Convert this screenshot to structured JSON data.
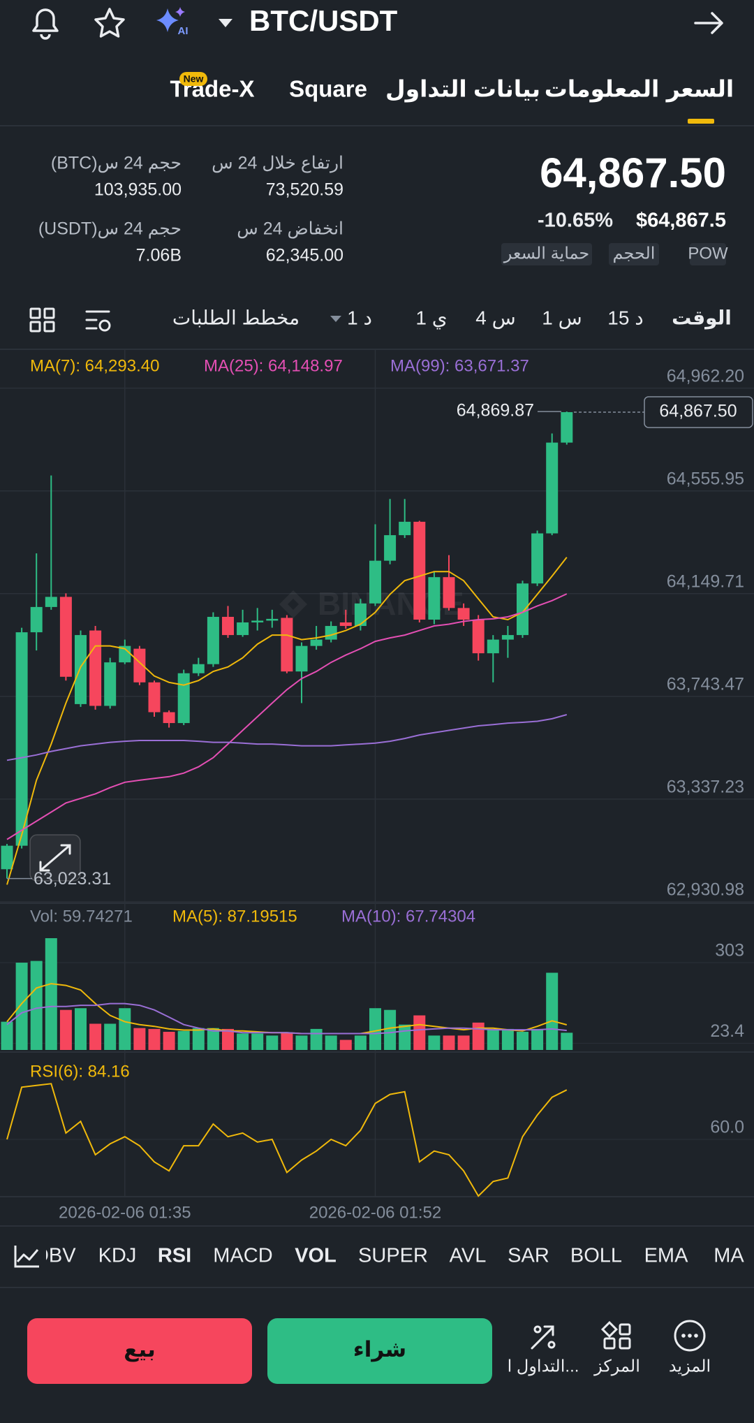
{
  "header": {
    "pair": "BTC/USDT",
    "ai_badge": "AI"
  },
  "tabs": [
    "السعر",
    "المعلومات",
    "بيانات التداول",
    "Square",
    "Trade-X"
  ],
  "new_badge": "New",
  "price": {
    "last": "64,867.50",
    "change": "-10.65%",
    "usd": "$64,867.5",
    "tags": [
      "POW",
      "الحجم",
      "حماية السعر"
    ]
  },
  "stats": [
    {
      "label": "ارتفاع خلال 24 س",
      "value": "73,520.59"
    },
    {
      "label": "حجم 24 س(BTC)",
      "value": "103,935.00"
    },
    {
      "label": "انخفاض 24 س",
      "value": "62,345.00"
    },
    {
      "label": "حجم 24 س(USDT)",
      "value": "7.06B"
    }
  ],
  "timeframes": [
    "الوقت",
    "15 د",
    "1 س",
    "4 س",
    "1 ي",
    "1 د"
  ],
  "depth_chart": "مخطط الطلبات",
  "chart_data": {
    "type": "candlestick",
    "categories": [
      null,
      null,
      null,
      null,
      null,
      null,
      null,
      null,
      "2026-02-06 01:35",
      null,
      null,
      null,
      null,
      null,
      null,
      null,
      null,
      null,
      null,
      null,
      null,
      null,
      null,
      null,
      null,
      "2026-02-06 01:52",
      null,
      null,
      null,
      null,
      null,
      null,
      null,
      null,
      null,
      null,
      null,
      null,
      null
    ],
    "open": [
      63060,
      63153,
      63997,
      64097,
      64137,
      63713,
      64004,
      63706,
      63878,
      63932,
      63799,
      63681,
      63638,
      63835,
      63871,
      64058,
      63986,
      64036,
      64043,
      64054,
      63842,
      63943,
      63968,
      64036,
      64022,
      64111,
      64280,
      64381,
      64434,
      64047,
      64215,
      64093,
      64047,
      63914,
      63968,
      63986,
      64190,
      64388,
      64747
    ],
    "high": [
      63160,
      64015,
      64309,
      64617,
      64151,
      64004,
      64022,
      63896,
      63968,
      63943,
      63806,
      63688,
      63849,
      63896,
      64076,
      64101,
      64086,
      64093,
      64086,
      64065,
      63957,
      64022,
      64040,
      64086,
      64129,
      64424,
      64524,
      64524,
      64438,
      64237,
      64302,
      64111,
      64065,
      63986,
      64022,
      64201,
      64399,
      64783,
      64869.87
    ],
    "low": [
      63023.31,
      63142,
      63925,
      64086,
      63806,
      63702,
      63691,
      63695,
      63871,
      63788,
      63663,
      63620,
      63630,
      63824,
      63860,
      63975,
      63979,
      64004,
      64015,
      63835,
      63717,
      63928,
      63957,
      64011,
      64004,
      64101,
      64266,
      64370,
      64036,
      64029,
      64083,
      64022,
      63885,
      63799,
      63896,
      63975,
      64180,
      64381,
      64739
    ],
    "close": [
      63153,
      63997,
      64097,
      64137,
      63821,
      63986,
      63706,
      63878,
      63943,
      63799,
      63681,
      63638,
      63835,
      63871,
      64058,
      63986,
      64036,
      64043,
      64050,
      63842,
      63943,
      63968,
      64022,
      64022,
      64111,
      64280,
      64381,
      64434,
      64047,
      64215,
      64093,
      64047,
      63914,
      63968,
      63986,
      64190,
      64388,
      64747,
      64867.5
    ],
    "up_color": "#2ebd85",
    "down_color": "#f6465d",
    "ma": [
      {
        "name": "MA(7): 64,293.40",
        "color": "#f0b90b",
        "values": [
          62999,
          63196,
          63412,
          63555,
          63717,
          63860,
          63943,
          63943,
          63932,
          63878,
          63824,
          63799,
          63788,
          63806,
          63842,
          63860,
          63896,
          63950,
          63986,
          63986,
          63968,
          63975,
          63986,
          64004,
          64029,
          64076,
          64147,
          64201,
          64219,
          64237,
          64237,
          64201,
          64129,
          64058,
          64047,
          64076,
          64147,
          64219,
          64293.4
        ]
      },
      {
        "name": "MA(25): 64,148.97",
        "color": "#e44fb4",
        "values": [
          63178,
          63214,
          63250,
          63286,
          63322,
          63340,
          63358,
          63383,
          63404,
          63412,
          63419,
          63426,
          63440,
          63465,
          63501,
          63555,
          63609,
          63663,
          63717,
          63770,
          63814,
          63842,
          63878,
          63907,
          63932,
          63961,
          63975,
          63986,
          64004,
          64022,
          64029,
          64040,
          64047,
          64050,
          64058,
          64076,
          64101,
          64122,
          64148.97
        ]
      },
      {
        "name": "MA(99): 63,671.37",
        "color": "#9a6fd6",
        "values": [
          63491,
          63501,
          63512,
          63526,
          63537,
          63548,
          63555,
          63562,
          63566,
          63569,
          63569,
          63569,
          63569,
          63566,
          63562,
          63562,
          63559,
          63555,
          63555,
          63552,
          63548,
          63548,
          63548,
          63552,
          63555,
          63559,
          63566,
          63577,
          63591,
          63600,
          63609,
          63618,
          63627,
          63632,
          63638,
          63641,
          63645,
          63655,
          63671.37
        ]
      }
    ],
    "ylim": [
      62930.98,
      65116
    ],
    "yticks": [
      {
        "value": 64962.2,
        "label": "64,962.20"
      },
      {
        "value": 64555.95,
        "label": "64,555.95"
      },
      {
        "value": 64149.71,
        "label": "64,149.71"
      },
      {
        "value": 63743.47,
        "label": "63,743.47"
      },
      {
        "value": 63337.23,
        "label": "63,337.23"
      },
      {
        "value": 62930.98,
        "label": "62,930.98"
      }
    ],
    "grid": true,
    "last_price": {
      "value": 64867.5,
      "label": "64,867.50"
    },
    "high_marker": {
      "value": 64869.87,
      "label": "64,869.87"
    },
    "low_marker": {
      "value": 63023.31,
      "label": "63,023.31"
    },
    "watermark": "BINANCE",
    "volume": {
      "name": "Vol: 59.74271",
      "values": [
        98,
        303,
        309,
        388,
        139,
        145,
        91,
        91,
        145,
        76,
        73,
        63,
        66,
        76,
        76,
        73,
        57,
        57,
        50,
        60,
        50,
        73,
        50,
        35,
        50,
        145,
        139,
        88,
        120,
        50,
        50,
        50,
        95,
        73,
        73,
        63,
        73,
        268,
        59.74271
      ],
      "ylim": [
        0,
        508
      ],
      "yticks": [
        303,
        23.4
      ],
      "ma": [
        {
          "name": "MA(5): 87.19515",
          "color": "#f0b90b",
          "values": [
            98,
            161,
            215,
            230,
            224,
            208,
            161,
            120,
            98,
            88,
            82,
            73,
            69,
            69,
            73,
            66,
            66,
            63,
            60,
            60,
            57,
            57,
            57,
            57,
            57,
            66,
            76,
            82,
            88,
            82,
            76,
            70,
            76,
            76,
            70,
            66,
            82,
            101,
            87.19515
          ]
        },
        {
          "name": "MA(10): 67.74304",
          "color": "#9a6fd6",
          "values": [
            88,
            129,
            145,
            151,
            151,
            155,
            155,
            161,
            161,
            155,
            139,
            114,
            88,
            76,
            66,
            66,
            60,
            60,
            60,
            60,
            57,
            57,
            57,
            57,
            57,
            57,
            60,
            66,
            70,
            73,
            76,
            76,
            73,
            70,
            70,
            70,
            70,
            73,
            67.74304
          ]
        }
      ]
    },
    "rsi": {
      "name": "RSI(6): 84.16",
      "color": "#f0b90b",
      "values": [
        60,
        85.5,
        86.4,
        87.2,
        63.1,
        68.8,
        52.5,
        57.8,
        61.3,
        56.9,
        49,
        44.6,
        56.9,
        56.9,
        67.5,
        61.3,
        63.1,
        58.7,
        60,
        43.8,
        49.9,
        54.3,
        60,
        56.9,
        64.4,
        77.6,
        82,
        83.3,
        49,
        54.3,
        52.5,
        44.6,
        32.3,
        39.4,
        41.1,
        61.3,
        71.9,
        80.6,
        84.16
      ],
      "ylim": [
        32,
        102
      ],
      "yticks": [
        {
          "value": 60,
          "label": "60.0"
        }
      ]
    }
  },
  "indicators": [
    "MA",
    "EMA",
    "BOLL",
    "SAR",
    "AVL",
    "SUPER",
    "VOL",
    "MACD",
    "RSI",
    "KDJ",
    "OBV"
  ],
  "actions": {
    "more": "المزيد",
    "center": "المركز",
    "trade": "التداول ا...",
    "buy": "شراء",
    "sell": "بيع"
  }
}
